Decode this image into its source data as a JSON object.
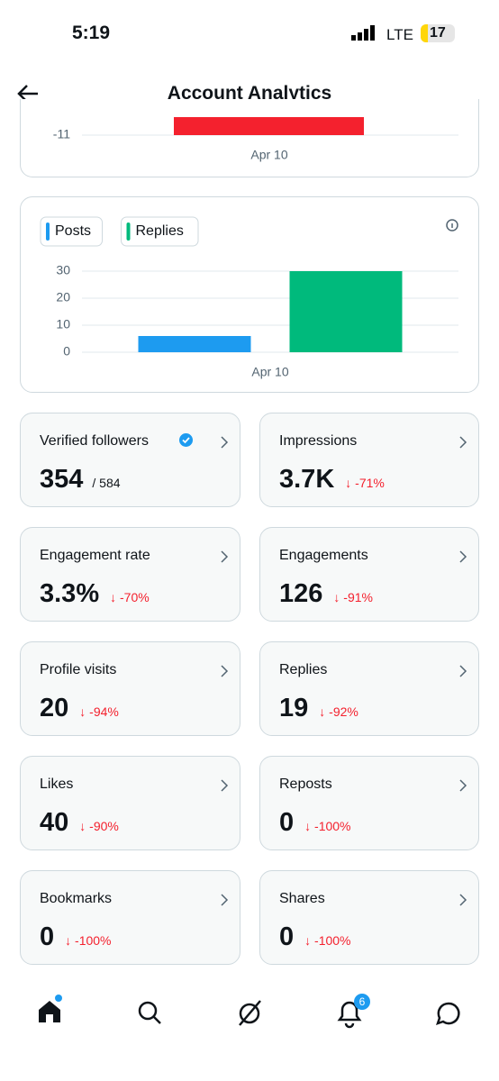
{
  "status_bar": {
    "time": "5:19",
    "network": "LTE",
    "battery": "17"
  },
  "header": {
    "title": "Account Analytics"
  },
  "top_chart": {
    "yticks": [
      -11
    ],
    "categories": [
      "Apr 10"
    ]
  },
  "chart_data": {
    "type": "bar",
    "categories": [
      "Apr 10"
    ],
    "series": [
      {
        "name": "Posts",
        "color": "#1d9bf0",
        "values": [
          6
        ]
      },
      {
        "name": "Replies",
        "color": "#00ba7c",
        "values": [
          30
        ]
      }
    ],
    "ylim": [
      0,
      30
    ],
    "yticks": [
      0,
      10,
      20,
      30
    ],
    "grid": true
  },
  "cards": [
    {
      "label": "Verified followers",
      "value": "354",
      "total": "/ 584",
      "verified": true
    },
    {
      "label": "Impressions",
      "value": "3.7K",
      "change": "-71%"
    },
    {
      "label": "Engagement rate",
      "value": "3.3%",
      "change": "-70%"
    },
    {
      "label": "Engagements",
      "value": "126",
      "change": "-91%"
    },
    {
      "label": "Profile visits",
      "value": "20",
      "change": "-94%"
    },
    {
      "label": "Replies",
      "value": "19",
      "change": "-92%"
    },
    {
      "label": "Likes",
      "value": "40",
      "change": "-90%"
    },
    {
      "label": "Reposts",
      "value": "0",
      "change": "-100%"
    },
    {
      "label": "Bookmarks",
      "value": "0",
      "change": "-100%"
    },
    {
      "label": "Shares",
      "value": "0",
      "change": "-100%"
    }
  ],
  "nav": {
    "notification_badge": "6"
  }
}
